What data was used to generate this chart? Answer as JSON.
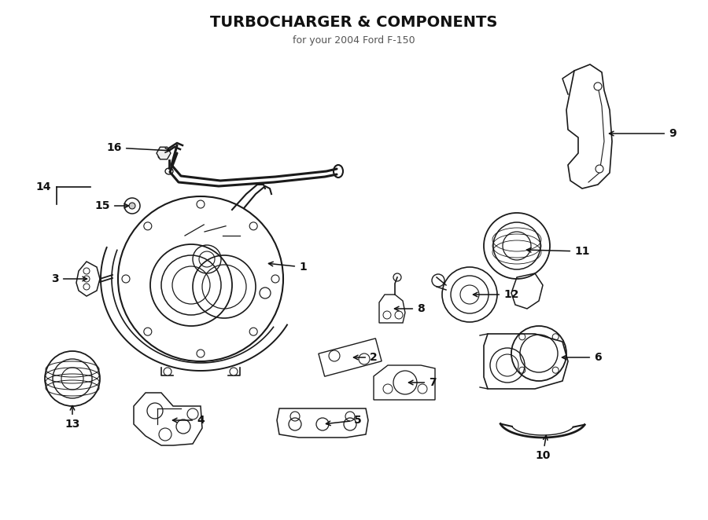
{
  "title": "TURBOCHARGER & COMPONENTS",
  "subtitle": "for your 2004 Ford F-150",
  "bg": "#ffffff",
  "lc": "#1a1a1a",
  "fig_w": 9.0,
  "fig_h": 6.62,
  "dpi": 100
}
